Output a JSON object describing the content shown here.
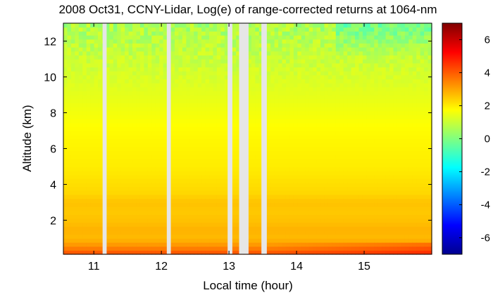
{
  "chart_data": {
    "type": "heatmap",
    "title": "2008 Oct31, CCNY-Lidar, Log(e) of range-corrected returns at 1064-nm",
    "xlabel": "Local time (hour)",
    "ylabel": "Altitude (km)",
    "xlim": [
      10.55,
      16.0
    ],
    "ylim": [
      0.1,
      13.0
    ],
    "x_ticks": [
      "11",
      "12",
      "13",
      "14",
      "15"
    ],
    "y_ticks": [
      "2",
      "4",
      "6",
      "8",
      "10",
      "12"
    ],
    "colorbar": {
      "range": [
        -7,
        7
      ],
      "ticks": [
        "6",
        "4",
        "2",
        "0",
        "-2",
        "-4",
        "-6"
      ],
      "colormap": [
        "#00008f",
        "#0000ff",
        "#0080ff",
        "#00ffff",
        "#80ff80",
        "#ffff00",
        "#ff8000",
        "#ff0000",
        "#800000"
      ]
    },
    "data_gaps_hour": [
      [
        11.13,
        11.19
      ],
      [
        12.08,
        12.14
      ],
      [
        12.98,
        13.05
      ],
      [
        13.15,
        13.29
      ],
      [
        13.48,
        13.56
      ]
    ],
    "altitude_profile": {
      "altitude_km": [
        0.25,
        0.5,
        0.75,
        1.0,
        1.5,
        2.0,
        2.5,
        3.0,
        3.5,
        4.0,
        5.0,
        6.0,
        7.0,
        8.0,
        9.0,
        10.0,
        11.0,
        12.0,
        13.0
      ],
      "log_return": [
        4.0,
        3.4,
        3.0,
        2.7,
        2.8,
        2.6,
        2.5,
        2.6,
        2.3,
        2.2,
        2.0,
        1.9,
        1.8,
        1.6,
        1.4,
        1.2,
        1.0,
        0.8,
        0.6
      ]
    }
  }
}
